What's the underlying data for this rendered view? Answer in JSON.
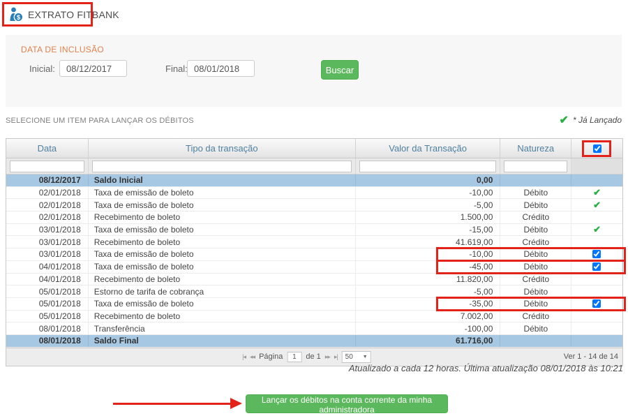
{
  "header": {
    "title": "EXTRATO FITBANK",
    "icon": "money-person-icon"
  },
  "filter": {
    "section_label": "DATA DE INCLUSÃO",
    "initial_label": "Inicial:",
    "initial_value": "08/12/2017",
    "final_label": "Final:",
    "final_value": "08/01/2018",
    "search_button": "Buscar"
  },
  "selection": {
    "instruction": "SELECIONE UM ITEM PARA LANÇAR OS DÉBITOS",
    "legend_check": "✔",
    "legend_label": "* Já Lançado"
  },
  "table": {
    "columns": [
      "Data",
      "Tipo da transação",
      "Valor da Transação",
      "Natureza"
    ],
    "check_glyph": "✔",
    "rows": [
      {
        "date": "08/12/2017",
        "type": "Saldo Inicial",
        "value": "0,00",
        "nature": "",
        "marker": "none",
        "balance": true,
        "highlighted": false
      },
      {
        "date": "02/01/2018",
        "type": "Taxa de emissão de boleto",
        "value": "-10,00",
        "nature": "Débito",
        "marker": "check",
        "balance": false,
        "highlighted": false
      },
      {
        "date": "02/01/2018",
        "type": "Taxa de emissão de boleto",
        "value": "-5,00",
        "nature": "Débito",
        "marker": "check",
        "balance": false,
        "highlighted": false
      },
      {
        "date": "02/01/2018",
        "type": "Recebimento de boleto",
        "value": "1.500,00",
        "nature": "Crédito",
        "marker": "none",
        "balance": false,
        "highlighted": false
      },
      {
        "date": "03/01/2018",
        "type": "Taxa de emissão de boleto",
        "value": "-15,00",
        "nature": "Débito",
        "marker": "check",
        "balance": false,
        "highlighted": false
      },
      {
        "date": "03/01/2018",
        "type": "Recebimento de boleto",
        "value": "41.619,00",
        "nature": "Crédito",
        "marker": "none",
        "balance": false,
        "highlighted": false
      },
      {
        "date": "03/01/2018",
        "type": "Taxa de emissão de boleto",
        "value": "-10,00",
        "nature": "Débito",
        "marker": "checkbox",
        "balance": false,
        "highlighted": true
      },
      {
        "date": "04/01/2018",
        "type": "Taxa de emissão de boleto",
        "value": "-45,00",
        "nature": "Débito",
        "marker": "checkbox",
        "balance": false,
        "highlighted": true
      },
      {
        "date": "04/01/2018",
        "type": "Recebimento de boleto",
        "value": "11.820,00",
        "nature": "Crédito",
        "marker": "none",
        "balance": false,
        "highlighted": false
      },
      {
        "date": "05/01/2018",
        "type": "Estorno de tarifa de cobrança",
        "value": "-5,00",
        "nature": "Débito",
        "marker": "none",
        "balance": false,
        "highlighted": false
      },
      {
        "date": "05/01/2018",
        "type": "Taxa de emissão de boleto",
        "value": "-35,00",
        "nature": "Débito",
        "marker": "checkbox",
        "balance": false,
        "highlighted": true
      },
      {
        "date": "05/01/2018",
        "type": "Recebimento de boleto",
        "value": "7.002,00",
        "nature": "Crédito",
        "marker": "none",
        "balance": false,
        "highlighted": false
      },
      {
        "date": "08/01/2018",
        "type": "Transferência",
        "value": "-100,00",
        "nature": "Débito",
        "marker": "none",
        "balance": false,
        "highlighted": false
      },
      {
        "date": "08/01/2018",
        "type": "Saldo Final",
        "value": "61.716,00",
        "nature": "",
        "marker": "none",
        "balance": true,
        "highlighted": false
      }
    ],
    "pager": {
      "first_icon": "|◂",
      "prev_icon": "◂◂",
      "next_icon": "▸▸",
      "last_icon": "▸|",
      "page_label": "Página",
      "page_value": "1",
      "of_label": "de 1",
      "page_size": "50",
      "select_caret": "▼",
      "range_label": "Ver 1 - 14 de 14"
    },
    "footer_note": "Atualizado a cada 12 horas. Última atualização 08/01/2018 às 10:21"
  },
  "action": {
    "launch_button": "Lançar os débitos na conta corrente da minha administradora"
  },
  "colors": {
    "accent_green": "#5cb85c",
    "check_green": "#28b044",
    "header_blue": "#4f81a1",
    "balance_row_blue": "#a7c8e2",
    "annotation_red": "#e32219",
    "section_orange": "#e0814b"
  }
}
